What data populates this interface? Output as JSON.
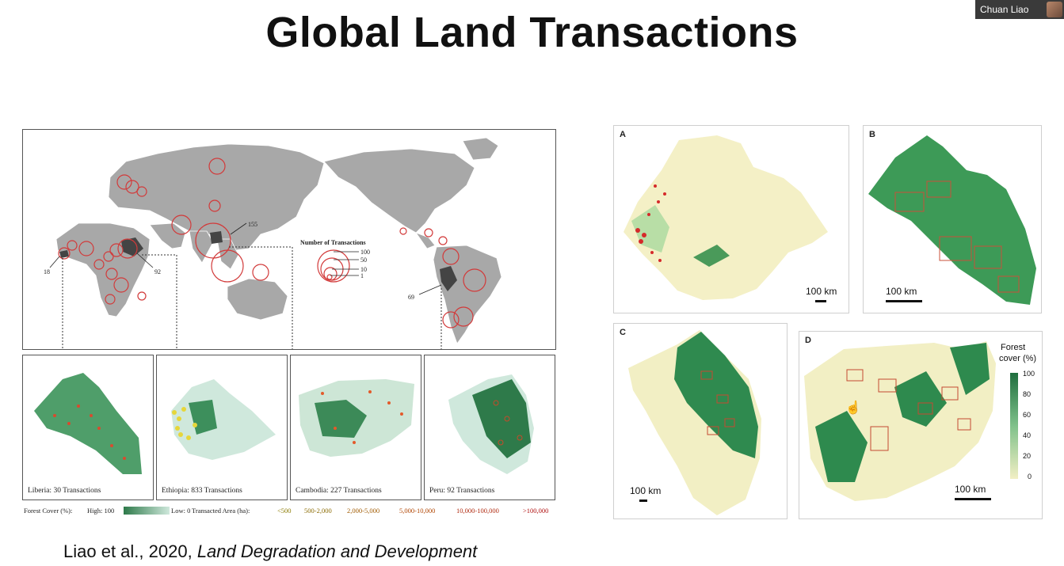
{
  "slide": {
    "title": "Global Land Transactions"
  },
  "participant": {
    "name": "Chuan Liao"
  },
  "world_map": {
    "labels": {
      "cambodia": "155",
      "ethiopia": "92",
      "liberia": "18",
      "peru": "69"
    },
    "legend_title": "Number of Transactions",
    "legend_values": [
      "100",
      "50",
      "10",
      "1"
    ]
  },
  "insets": [
    {
      "caption": "Liberia: 30 Transactions"
    },
    {
      "caption": "Ethiopia: 833 Transactions"
    },
    {
      "caption": "Cambodia: 227 Transactions"
    },
    {
      "caption": "Peru: 92 Transactions"
    }
  ],
  "bottom_legend": {
    "forest_cover": "Forest Cover (%):",
    "high": "High: 100",
    "low": "Low: 0",
    "area_title": "Transacted Area (ha):",
    "area_classes": [
      "<500",
      "500-2,000",
      "2,000-5,000",
      "5,000-10,000",
      "10,000-100,000",
      ">100,000"
    ]
  },
  "right_panels": {
    "A": {
      "label": "A",
      "scale": "100 km"
    },
    "B": {
      "label": "B",
      "scale": "100 km"
    },
    "C": {
      "label": "C",
      "scale": "100 km"
    },
    "D": {
      "label": "D",
      "scale": "100 km",
      "legend_title_1": "Forest",
      "legend_title_2": "cover (%)",
      "legend_ticks": [
        "100",
        "80",
        "60",
        "40",
        "20",
        "0"
      ]
    }
  },
  "citation": {
    "authors": "Liao et al., 2020,",
    "journal": "Land Degradation and Development"
  }
}
